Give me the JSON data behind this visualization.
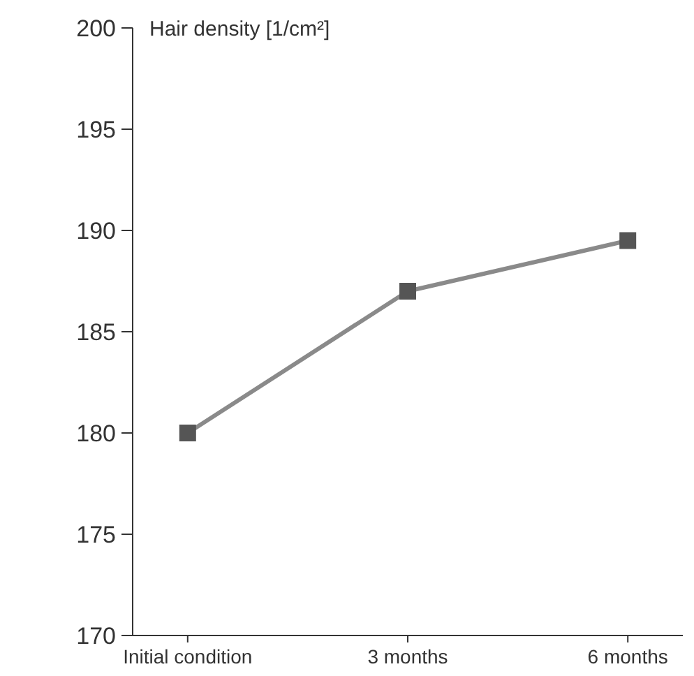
{
  "chart_data": {
    "type": "line",
    "ylabel": "Hair density [1/cm²]",
    "categories": [
      "Initial condition",
      "3 months",
      "6 months"
    ],
    "series": [
      {
        "color": "#8a8a8a",
        "values": [
          180,
          187,
          189.5
        ]
      }
    ],
    "ylim": [
      170,
      200
    ],
    "yticks": [
      170,
      175,
      180,
      185,
      190,
      195,
      200
    ],
    "marker": "square",
    "line_style": "solid",
    "grid": false
  }
}
